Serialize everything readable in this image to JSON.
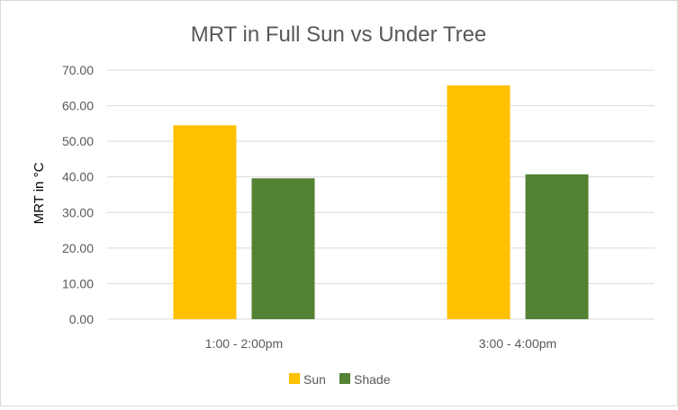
{
  "chart_data": {
    "type": "bar",
    "title": "MRT in Full Sun vs Under Tree",
    "xlabel": "",
    "ylabel": "MRT in °C",
    "categories": [
      "1:00 - 2:00pm",
      "3:00 - 4:00pm"
    ],
    "series": [
      {
        "name": "Sun",
        "color": "#FFC000",
        "values": [
          54.5,
          65.7
        ]
      },
      {
        "name": "Shade",
        "color": "#548235",
        "values": [
          39.6,
          40.7
        ]
      }
    ],
    "ylim": [
      0,
      70
    ],
    "yticks": [
      "0.00",
      "10.00",
      "20.00",
      "30.00",
      "40.00",
      "50.00",
      "60.00",
      "70.00"
    ],
    "grid": true,
    "legend_position": "bottom"
  }
}
